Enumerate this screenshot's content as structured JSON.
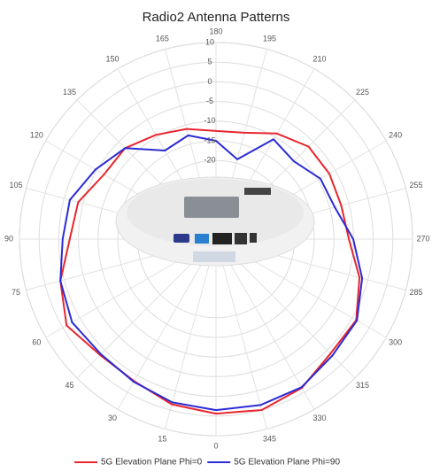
{
  "chart_data": {
    "type": "polar",
    "title": "Radio2 Antenna Patterns",
    "theta": [
      0,
      15,
      30,
      45,
      60,
      75,
      90,
      105,
      120,
      135,
      150,
      165,
      180,
      195,
      210,
      225,
      240,
      255,
      270,
      285,
      300,
      315,
      330,
      345
    ],
    "thetaticks": [
      0,
      15,
      30,
      45,
      60,
      75,
      90,
      105,
      120,
      135,
      150,
      165,
      180,
      195,
      210,
      225,
      240,
      255,
      270,
      285,
      300,
      315,
      330,
      345
    ],
    "rlim": [
      -40,
      10
    ],
    "rticks": [
      -20,
      -15,
      -10,
      -5,
      0,
      5,
      10
    ],
    "grid": true,
    "legend": "bottom",
    "series": [
      {
        "name": "5G Elevation Plane Phi=0",
        "color": "#e8262d",
        "values": [
          4.4,
          3.5,
          1.7,
          1.7,
          3.9,
          1,
          -2.8,
          -3.7,
          -7.1,
          -7.3,
          -9.4,
          -11,
          -12.5,
          -12,
          -9,
          -6.7,
          -6.7,
          -7,
          -6.2,
          -2.2,
          1.2,
          1.2,
          3.7,
          5
        ]
      },
      {
        "name": "5G Elevation Plane Phi=90",
        "color": "#2b2bd6",
        "values": [
          3.5,
          3,
          1.9,
          1.4,
          2.3,
          1,
          -1,
          -1.5,
          -4.6,
          -7.3,
          -14,
          -12.7,
          -15,
          -19,
          -10.7,
          -12,
          -9.3,
          -8.7,
          -5.1,
          -1.5,
          1.4,
          1.9,
          3.5,
          3.7
        ]
      }
    ]
  }
}
